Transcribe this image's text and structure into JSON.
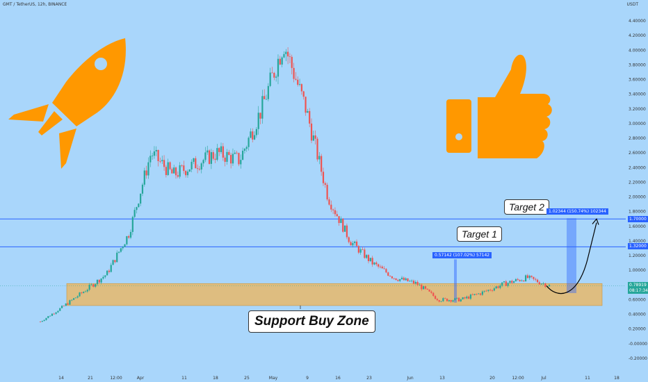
{
  "header": {
    "symbol": "GMT / TetherUS, 12h, BINANCE",
    "currency": "USDT"
  },
  "chart_data": {
    "type": "candlestick",
    "ylim": [
      -0.3,
      4.6
    ],
    "y_ticks": [
      "4.40000",
      "4.20000",
      "4.00000",
      "3.80000",
      "3.60000",
      "3.40000",
      "3.20000",
      "3.00000",
      "2.80000",
      "2.60000",
      "2.40000",
      "2.20000",
      "2.00000",
      "1.80000",
      "1.60000",
      "1.40000",
      "1.20000",
      "1.00000",
      "0.80000",
      "0.60000",
      "0.40000",
      "0.20000",
      "-0.00000",
      "-0.20000"
    ],
    "y_tick_values": [
      4.4,
      4.2,
      4.0,
      3.8,
      3.6,
      3.4,
      3.2,
      3.0,
      2.8,
      2.6,
      2.4,
      2.2,
      2.0,
      1.8,
      1.6,
      1.4,
      1.2,
      1.0,
      0.8,
      0.6,
      0.4,
      0.2,
      0.0,
      -0.2
    ],
    "x_ticks": [
      "14",
      "21",
      "12:00",
      "Apr",
      "11",
      "18",
      "25",
      "May",
      "9",
      "16",
      "23",
      "Jun",
      "13",
      "20",
      "12:00",
      "Jul",
      "11",
      "18"
    ],
    "horizontal_lines": [
      {
        "value": 1.7,
        "label": "1.70000"
      },
      {
        "value": 1.32,
        "label": "1.32000"
      }
    ],
    "last_price": {
      "value": 0.78919,
      "label": "0.78919",
      "countdown": "08:17:34"
    },
    "support_zone": {
      "label": "Support Buy Zone",
      "low": 0.52,
      "high": 0.82
    },
    "targets": [
      {
        "label": "Target 1",
        "measure": "0.57142 (107.02%) 57142"
      },
      {
        "label": "Target 2",
        "measure": "1.02344 (150.74%) 102344"
      }
    ],
    "price_path": [
      0.3,
      0.5,
      0.72,
      0.95,
      1.5,
      2.6,
      2.3,
      2.45,
      2.6,
      2.5,
      3.2,
      4.1,
      3.2,
      2.0,
      1.4,
      1.1,
      0.9,
      0.82,
      0.6,
      0.6,
      0.7,
      0.82,
      0.9,
      0.79
    ]
  },
  "colors": {
    "background": "#a9d6fb",
    "bull": "#26a69a",
    "bear": "#ef5350",
    "zone": "#e8b86a",
    "line": "#2962ff",
    "icon": "#ff9800"
  },
  "icons": [
    "rocket-icon",
    "thumbs-up-icon"
  ]
}
